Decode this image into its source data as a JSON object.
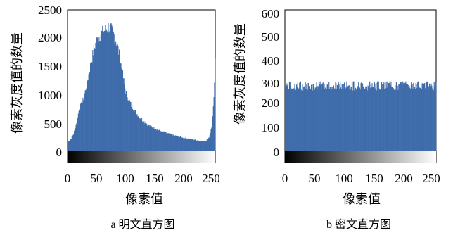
{
  "chart_data": [
    {
      "type": "histogram",
      "ylabel": "像素灰度值的数量",
      "xlabel": "像素值",
      "caption": "a 明文直方图",
      "xlim": [
        0,
        255
      ],
      "ylim": [
        0,
        2500
      ],
      "xticks": [
        "0",
        "50",
        "100",
        "150",
        "200",
        "250"
      ],
      "yticks": [
        "0",
        "500",
        "1000",
        "1500",
        "2000",
        "2500"
      ],
      "bar_color": "#3f6cab",
      "x": [
        0,
        5,
        10,
        15,
        20,
        25,
        30,
        35,
        40,
        45,
        50,
        55,
        60,
        65,
        70,
        75,
        80,
        85,
        90,
        95,
        100,
        110,
        120,
        130,
        140,
        150,
        160,
        170,
        180,
        190,
        200,
        210,
        220,
        230,
        240,
        245,
        250,
        253,
        255
      ],
      "values": [
        150,
        200,
        300,
        500,
        750,
        850,
        1050,
        1300,
        1550,
        1800,
        1950,
        2050,
        2100,
        2150,
        2200,
        2150,
        2050,
        1900,
        1650,
        1350,
        1050,
        800,
        650,
        530,
        450,
        400,
        350,
        310,
        280,
        250,
        230,
        210,
        190,
        170,
        180,
        240,
        450,
        900,
        1550
      ]
    },
    {
      "type": "histogram",
      "ylabel": "像素灰度值的数量",
      "xlabel": "像素值",
      "caption": "b 密文直方图",
      "xlim": [
        0,
        255
      ],
      "ylim": [
        0,
        600
      ],
      "xticks": [
        "0",
        "50",
        "100",
        "150",
        "200",
        "250"
      ],
      "yticks": [
        "0",
        "100",
        "200",
        "300",
        "400",
        "500",
        "600"
      ],
      "bar_color": "#3f6cab",
      "x": [
        0,
        255
      ],
      "values": [
        255,
        255
      ],
      "value_range": [
        235,
        295
      ]
    }
  ]
}
